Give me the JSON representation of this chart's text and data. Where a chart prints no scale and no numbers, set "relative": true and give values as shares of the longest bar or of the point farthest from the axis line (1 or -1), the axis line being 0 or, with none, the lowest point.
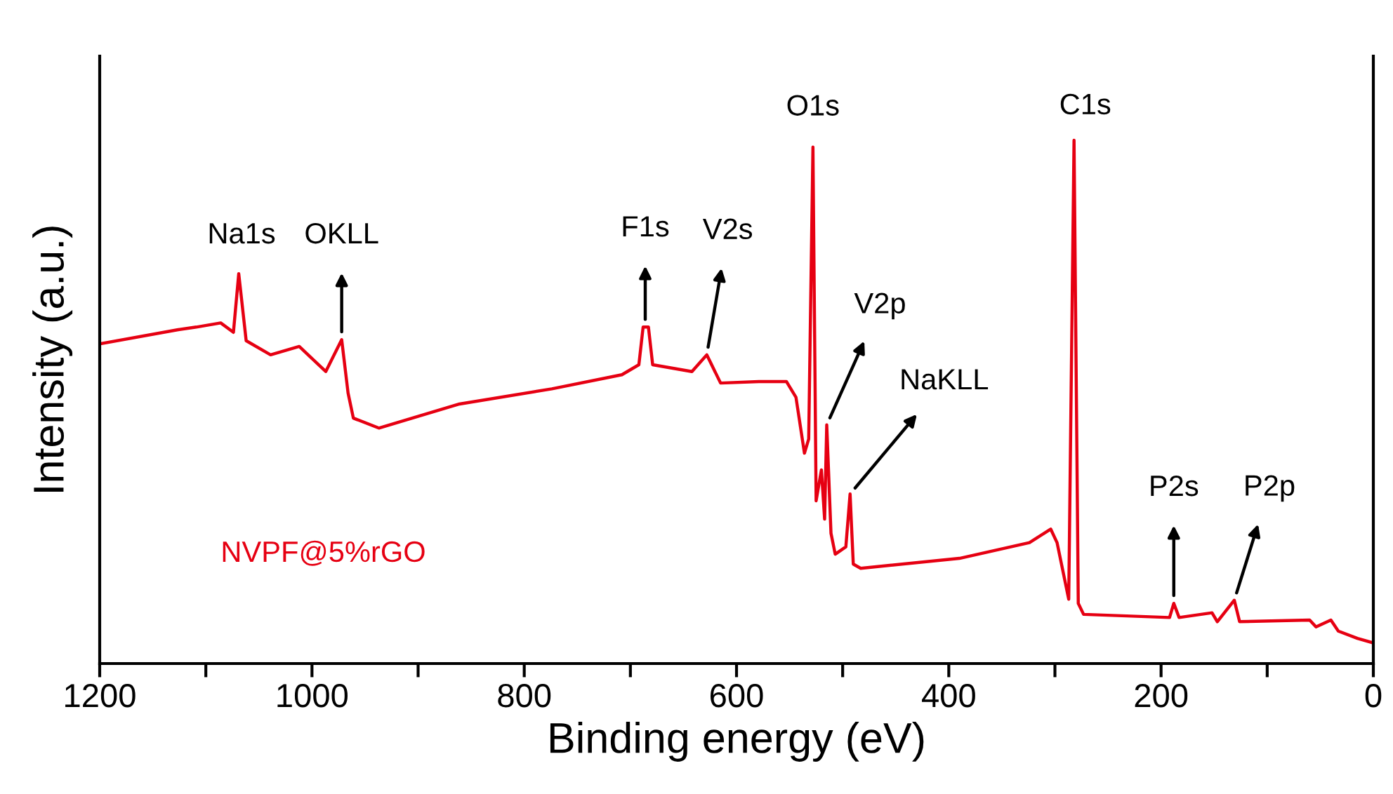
{
  "chart_data": {
    "type": "line",
    "relative": true,
    "xlabel": "Binding energy (eV)",
    "ylabel": "Intensity (a.u.)",
    "xlim": [
      1200,
      0
    ],
    "xticks": [
      1200,
      {
        "value": 1100,
        "label": null
      },
      1000,
      {
        "value": 900,
        "label": null
      },
      800,
      {
        "value": 700,
        "label": null
      },
      600,
      {
        "value": 500,
        "label": null
      },
      400,
      {
        "value": 300,
        "label": null
      },
      200,
      {
        "value": 100,
        "label": null
      },
      0
    ],
    "series": [
      {
        "name": "NVPF@5%rGO",
        "color": "#e60012",
        "x": [
          1200,
          1126,
          1109,
          1086,
          1074,
          1069,
          1062,
          1039,
          1012,
          987,
          972,
          966,
          961,
          937,
          861,
          774,
          708,
          692,
          688,
          683,
          679,
          642,
          628,
          615,
          579,
          553,
          544,
          536,
          532,
          528,
          525,
          520,
          517,
          515,
          511,
          507,
          497,
          493,
          490,
          483,
          390,
          324,
          304,
          298,
          287,
          282,
          278,
          273,
          192,
          188,
          183,
          152,
          147,
          131,
          126,
          60,
          54,
          40,
          33,
          15,
          1
        ],
        "values": [
          0.611,
          0.638,
          0.643,
          0.651,
          0.633,
          0.745,
          0.617,
          0.59,
          0.606,
          0.558,
          0.619,
          0.517,
          0.469,
          0.45,
          0.496,
          0.525,
          0.552,
          0.571,
          0.643,
          0.643,
          0.571,
          0.558,
          0.59,
          0.536,
          0.539,
          0.539,
          0.509,
          0.402,
          0.429,
          0.987,
          0.311,
          0.37,
          0.276,
          0.456,
          0.249,
          0.209,
          0.223,
          0.324,
          0.19,
          0.182,
          0.201,
          0.231,
          0.257,
          0.231,
          0.123,
          1.0,
          0.115,
          0.094,
          0.088,
          0.115,
          0.088,
          0.097,
          0.08,
          0.121,
          0.08,
          0.083,
          0.07,
          0.083,
          0.062,
          0.048,
          0.04
        ]
      }
    ],
    "annotations": [
      {
        "text": "Na1s",
        "x": 1069,
        "y": 0.745
      },
      {
        "text": "OKLL",
        "x": 972,
        "y": 0.619
      },
      {
        "text": "F1s",
        "x": 686,
        "y": 0.643
      },
      {
        "text": "V2s",
        "x": 628,
        "y": 0.59
      },
      {
        "text": "O1s",
        "x": 528,
        "y": 0.987
      },
      {
        "text": "V2p",
        "x": 515,
        "y": 0.456
      },
      {
        "text": "NaKLL",
        "x": 493,
        "y": 0.324
      },
      {
        "text": "C1s",
        "x": 282,
        "y": 1.0
      },
      {
        "text": "P2s",
        "x": 188,
        "y": 0.115
      },
      {
        "text": "P2p",
        "x": 131,
        "y": 0.121
      }
    ]
  }
}
